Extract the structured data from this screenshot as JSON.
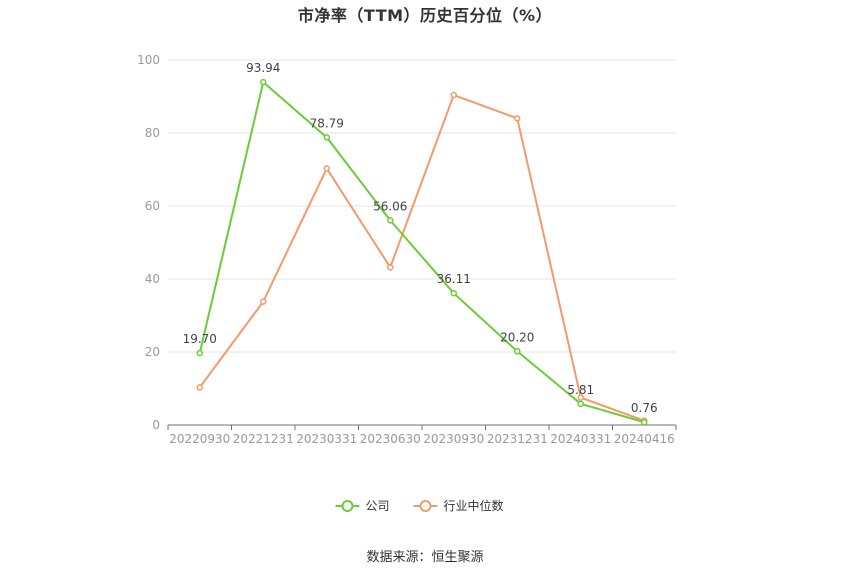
{
  "chart_data": {
    "type": "line",
    "title": "市净率（TTM）历史百分位（%）",
    "categories": [
      "20220930",
      "20221231",
      "20230331",
      "20230630",
      "20230930",
      "20231231",
      "20240331",
      "20240416"
    ],
    "ylim": [
      0,
      100
    ],
    "yticks": [
      0,
      20,
      40,
      60,
      80,
      100
    ],
    "grid": true,
    "legend_position": "bottom-center",
    "series": [
      {
        "name": "公司",
        "color": "#6acd37",
        "values": [
          19.7,
          93.94,
          78.79,
          56.06,
          36.11,
          20.2,
          5.81,
          0.76
        ],
        "labels": [
          "19.70",
          "93.94",
          "78.79",
          "56.06",
          "36.11",
          "20.20",
          "5.81",
          "0.76"
        ]
      },
      {
        "name": "行业中位数",
        "color": "#f39a6b",
        "values": [
          10.3,
          33.8,
          70.3,
          43.2,
          90.4,
          84.0,
          7.5,
          1.2
        ]
      }
    ]
  },
  "footer": {
    "source": "数据来源：恒生聚源"
  }
}
